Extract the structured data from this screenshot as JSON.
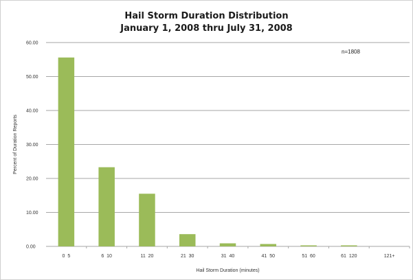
{
  "chart_data": {
    "type": "bar",
    "title": "Hail Storm Duration Distribution",
    "subtitle": "January 1, 2008 thru July 31, 2008",
    "xlabel": "Hail Storm Duration (minutes)",
    "ylabel": "Percent of Duration Reports",
    "annotation": "n=1808",
    "categories": [
      "0  5",
      "6  10",
      "11  20",
      "21  30",
      "31  40",
      "41  50",
      "51  60",
      "61  120",
      "121+"
    ],
    "values": [
      55.6,
      23.3,
      15.5,
      3.6,
      0.9,
      0.7,
      0.3,
      0.3,
      0.0
    ],
    "ylim": [
      0,
      60
    ],
    "yticks": [
      "0.00",
      "10.00",
      "20.00",
      "30.00",
      "40.00",
      "50.00",
      "60.00"
    ],
    "grid": true,
    "bar_color": "#9bbb59",
    "grid_color": "#a6a6a6"
  }
}
